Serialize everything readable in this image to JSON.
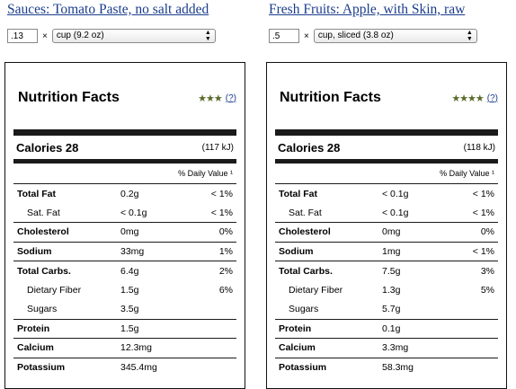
{
  "panels": [
    {
      "food_title": "Sauces: Tomato Paste, no salt added",
      "quantity": ".13",
      "times": "×",
      "serving": "cup (9.2 oz)",
      "label_title": "Nutrition Facts",
      "stars": "★★★",
      "rating_link": "(?)",
      "calories_label": "Calories 28",
      "calories_kj": "(117 kJ)",
      "dv_header": "% Daily Value ¹",
      "nutrients": [
        {
          "name": "Total Fat",
          "amount": "0.2g",
          "dv": "< 1%"
        },
        {
          "name": "Sat. Fat",
          "amount": "< 0.1g",
          "dv": "< 1%"
        },
        {
          "name": "Cholesterol",
          "amount": "0mg",
          "dv": "0%"
        },
        {
          "name": "Sodium",
          "amount": "33mg",
          "dv": "1%"
        },
        {
          "name": "Total Carbs.",
          "amount": "6.4g",
          "dv": "2%"
        },
        {
          "name": "Dietary Fiber",
          "amount": "1.5g",
          "dv": "6%"
        },
        {
          "name": "Sugars",
          "amount": "3.5g",
          "dv": ""
        },
        {
          "name": "Protein",
          "amount": "1.5g",
          "dv": ""
        },
        {
          "name": "Calcium",
          "amount": "12.3mg",
          "dv": ""
        },
        {
          "name": "Potassium",
          "amount": "345.4mg",
          "dv": ""
        }
      ]
    },
    {
      "food_title": "Fresh Fruits: Apple, with Skin, raw",
      "quantity": ".5",
      "times": "×",
      "serving": "cup, sliced (3.8 oz)",
      "label_title": "Nutrition Facts",
      "stars": "★★★★",
      "rating_link": "(?)",
      "calories_label": "Calories 28",
      "calories_kj": "(118 kJ)",
      "dv_header": "% Daily Value ¹",
      "nutrients": [
        {
          "name": "Total Fat",
          "amount": "< 0.1g",
          "dv": "< 1%"
        },
        {
          "name": "Sat. Fat",
          "amount": "< 0.1g",
          "dv": "< 1%"
        },
        {
          "name": "Cholesterol",
          "amount": "0mg",
          "dv": "0%"
        },
        {
          "name": "Sodium",
          "amount": "1mg",
          "dv": "< 1%"
        },
        {
          "name": "Total Carbs.",
          "amount": "7.5g",
          "dv": "3%"
        },
        {
          "name": "Dietary Fiber",
          "amount": "1.3g",
          "dv": "5%"
        },
        {
          "name": "Sugars",
          "amount": "5.7g",
          "dv": ""
        },
        {
          "name": "Protein",
          "amount": "0.1g",
          "dv": ""
        },
        {
          "name": "Calcium",
          "amount": "3.3mg",
          "dv": ""
        },
        {
          "name": "Potassium",
          "amount": "58.3mg",
          "dv": ""
        }
      ]
    }
  ]
}
